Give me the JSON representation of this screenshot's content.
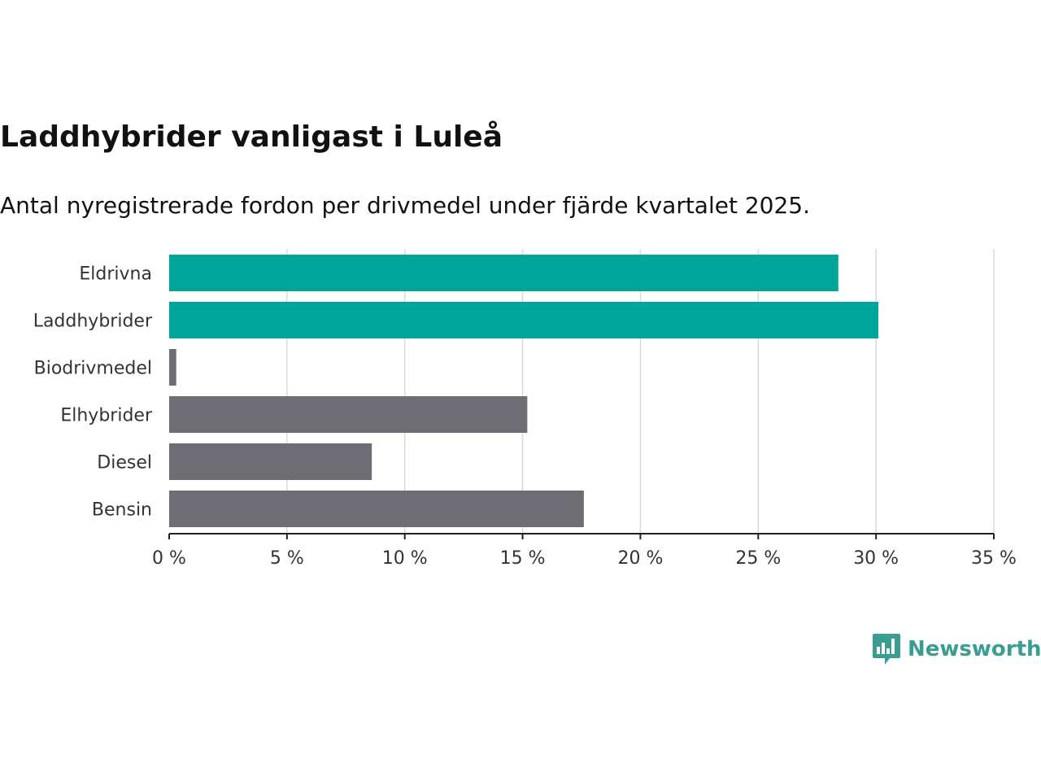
{
  "chart_data": {
    "type": "bar",
    "orientation": "horizontal",
    "title": "Laddhybrider vanligast i Luleå",
    "subtitle": "Antal nyregistrerade fordon per drivmedel under fjärde kvartalet 2025.",
    "categories": [
      "Eldrivna",
      "Laddhybrider",
      "Biodrivmedel",
      "Elhybrider",
      "Diesel",
      "Bensin"
    ],
    "values": [
      28.4,
      30.1,
      0.3,
      15.2,
      8.6,
      17.6
    ],
    "highlight": [
      true,
      true,
      false,
      false,
      false,
      false
    ],
    "colors": {
      "highlight": "#00a59a",
      "default": "#6e6d73",
      "grid": "#d9d9d9",
      "axis": "#222222"
    },
    "xlim": [
      0,
      35
    ],
    "xticks": [
      0,
      5,
      10,
      15,
      20,
      25,
      30,
      35
    ],
    "xtick_labels": [
      "0 %",
      "5 %",
      "10 %",
      "15 %",
      "20 %",
      "25 %",
      "30 %",
      "35 %"
    ],
    "grid": true,
    "unit": "%"
  },
  "logo": {
    "text": "Newsworthy",
    "icon": "newsworthy-bar-chart-icon",
    "color": "#3a9d92"
  }
}
